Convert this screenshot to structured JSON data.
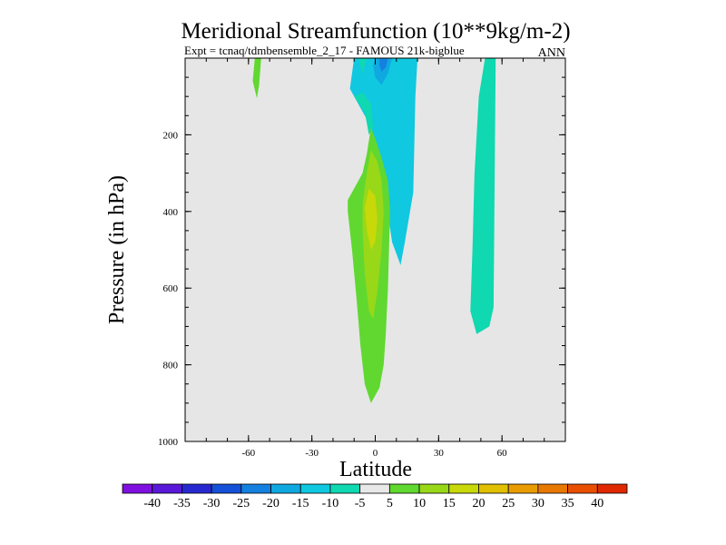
{
  "chart_data": {
    "type": "contour",
    "title": "Meridional Streamfunction (10**9kg/m-2)",
    "subtitle_left": "Expt = tcnaq/tdmbensemble_2_17 - FAMOUS 21k-bigblue",
    "subtitle_right": "ANN",
    "xlabel": "Latitude",
    "ylabel": "Pressure (in hPa)",
    "xlim": [
      -90,
      90
    ],
    "ylim": [
      1000,
      0
    ],
    "x_ticks": [
      -60,
      -30,
      0,
      30,
      60
    ],
    "x_tick_labels": [
      "-60",
      "-30",
      "0",
      "30",
      "60"
    ],
    "y_ticks": [
      200,
      400,
      600,
      800,
      1000
    ],
    "y_tick_labels": [
      "200",
      "400",
      "600",
      "800",
      "1000"
    ],
    "background": "#e6e6e6",
    "colorbar": {
      "levels": [
        "-40",
        "-35",
        "-30",
        "-25",
        "-20",
        "-15",
        "-10",
        "-5",
        "5",
        "10",
        "15",
        "20",
        "25",
        "30",
        "35",
        "40"
      ],
      "colors": [
        "#7f10e0",
        "#5a18d8",
        "#2828d0",
        "#1450d8",
        "#1480e0",
        "#10a8e0",
        "#10c8e0",
        "#10d8b0",
        "#e8e8e8",
        "#60d830",
        "#98d818",
        "#c8d808",
        "#e0c000",
        "#e89c00",
        "#e87800",
        "#e85000",
        "#e02800"
      ]
    },
    "regions": [
      {
        "name": "positive-cell-10",
        "color": "#60d830",
        "points": [
          [
            -57,
            0
          ],
          [
            -54,
            0
          ],
          [
            -55,
            70
          ],
          [
            -56,
            105
          ],
          [
            -58,
            60
          ]
        ]
      },
      {
        "name": "negative-cell-10-north",
        "color": "#10c8e0",
        "points": [
          [
            -10,
            0
          ],
          [
            20,
            0
          ],
          [
            19,
            100
          ],
          [
            18,
            350
          ],
          [
            14,
            480
          ],
          [
            12,
            540
          ],
          [
            8,
            480
          ],
          [
            5,
            370
          ],
          [
            3,
            300
          ],
          [
            0,
            250
          ],
          [
            -2,
            180
          ],
          [
            -5,
            150
          ],
          [
            -8,
            120
          ],
          [
            -12,
            80
          ]
        ]
      },
      {
        "name": "negative-cell-15",
        "color": "#10a8e0",
        "points": [
          [
            0,
            0
          ],
          [
            8,
            0
          ],
          [
            6,
            40
          ],
          [
            3,
            70
          ],
          [
            0,
            50
          ],
          [
            -1,
            20
          ]
        ]
      },
      {
        "name": "negative-cell-25",
        "color": "#1480e0",
        "points": [
          [
            2,
            0
          ],
          [
            6,
            0
          ],
          [
            5,
            25
          ],
          [
            3,
            35
          ],
          [
            2,
            20
          ]
        ]
      },
      {
        "name": "negative-cell-10-south",
        "color": "#10d8b0",
        "points": [
          [
            -8,
            0
          ],
          [
            -4,
            0
          ],
          [
            -6,
            40
          ],
          [
            -7,
            20
          ]
        ]
      },
      {
        "name": "negative-cell-10-south-mid",
        "color": "#10d8b0",
        "points": [
          [
            -10,
            100
          ],
          [
            -5,
            140
          ],
          [
            -3,
            200
          ],
          [
            -1,
            180
          ],
          [
            -2,
            120
          ],
          [
            -6,
            90
          ]
        ]
      },
      {
        "name": "negative-cell-10-highlat",
        "color": "#10d8b0",
        "points": [
          [
            52,
            0
          ],
          [
            57,
            0
          ],
          [
            56,
            650
          ],
          [
            54,
            700
          ],
          [
            48,
            720
          ],
          [
            45,
            660
          ],
          [
            46,
            500
          ],
          [
            47,
            300
          ],
          [
            49,
            100
          ]
        ]
      },
      {
        "name": "positive-cell-10-main",
        "color": "#60d830",
        "points": [
          [
            -2,
            180
          ],
          [
            0,
            210
          ],
          [
            3,
            260
          ],
          [
            6,
            320
          ],
          [
            7,
            400
          ],
          [
            6,
            600
          ],
          [
            5,
            720
          ],
          [
            4,
            800
          ],
          [
            2,
            860
          ],
          [
            -2,
            900
          ],
          [
            -5,
            850
          ],
          [
            -7,
            750
          ],
          [
            -9,
            620
          ],
          [
            -11,
            500
          ],
          [
            -13,
            400
          ],
          [
            -13,
            370
          ],
          [
            -11,
            350
          ],
          [
            -9,
            330
          ],
          [
            -6,
            300
          ],
          [
            -4,
            250
          ]
        ]
      },
      {
        "name": "positive-cell-15",
        "color": "#98d818",
        "points": [
          [
            -2,
            240
          ],
          [
            1,
            270
          ],
          [
            3,
            320
          ],
          [
            4,
            400
          ],
          [
            3,
            500
          ],
          [
            1,
            610
          ],
          [
            -1,
            680
          ],
          [
            -3,
            660
          ],
          [
            -5,
            560
          ],
          [
            -6,
            450
          ],
          [
            -6,
            380
          ],
          [
            -4,
            300
          ]
        ]
      },
      {
        "name": "positive-cell-20",
        "color": "#c8d808",
        "points": [
          [
            -3,
            340
          ],
          [
            0,
            360
          ],
          [
            1,
            420
          ],
          [
            0,
            480
          ],
          [
            -2,
            500
          ],
          [
            -4,
            450
          ],
          [
            -5,
            390
          ]
        ]
      }
    ]
  }
}
